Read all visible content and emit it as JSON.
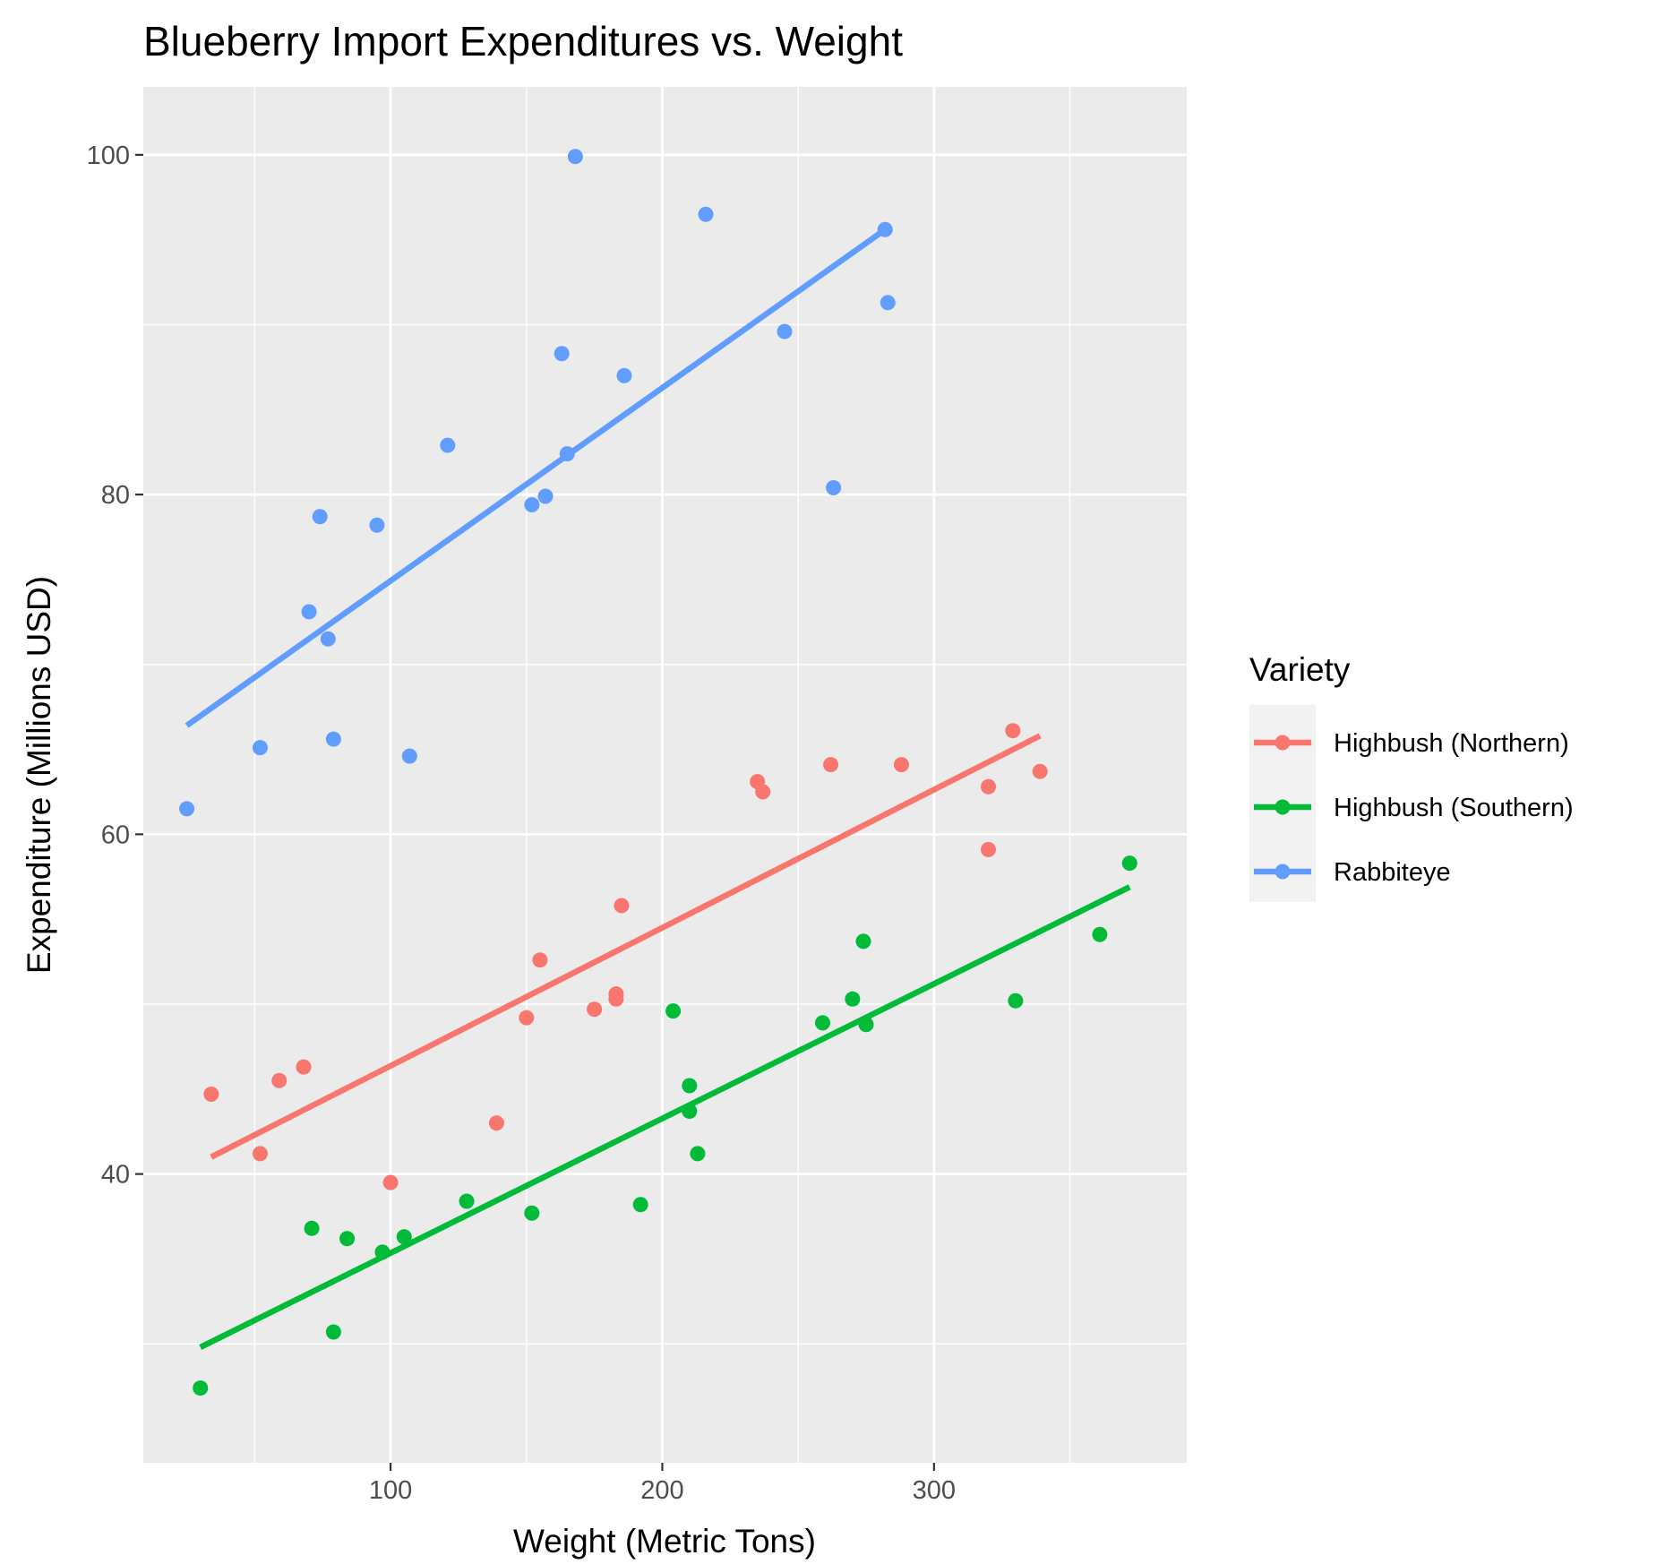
{
  "chart_data": {
    "type": "scatter",
    "title": "Blueberry Import Expenditures vs. Weight",
    "xlabel": "Weight (Metric Tons)",
    "ylabel": "Expenditure (Millions USD)",
    "xlim": [
      9,
      393
    ],
    "ylim": [
      23,
      104
    ],
    "x_ticks": [
      100,
      200,
      300
    ],
    "y_ticks": [
      40,
      60,
      80,
      100
    ],
    "x_tick_labels": [
      "100",
      "200",
      "300"
    ],
    "y_tick_labels": [
      "40",
      "60",
      "80",
      "100"
    ],
    "grid": true,
    "panel_background": "#EBEBEB",
    "legend": {
      "title": "Variety",
      "position": "right"
    },
    "series": [
      {
        "name": "Highbush (Northern)",
        "color": "#F8766D",
        "points": [
          [
            34,
            44.7
          ],
          [
            52,
            41.2
          ],
          [
            59,
            45.5
          ],
          [
            68,
            46.3
          ],
          [
            100,
            39.5
          ],
          [
            139,
            43.0
          ],
          [
            150,
            49.2
          ],
          [
            155,
            52.6
          ],
          [
            175,
            49.7
          ],
          [
            183,
            50.6
          ],
          [
            183,
            50.3
          ],
          [
            185,
            55.8
          ],
          [
            235,
            63.1
          ],
          [
            237,
            62.5
          ],
          [
            262,
            64.1
          ],
          [
            288,
            64.1
          ],
          [
            320,
            62.8
          ],
          [
            320,
            59.1
          ],
          [
            329,
            66.1
          ],
          [
            339,
            63.7
          ]
        ],
        "fit": {
          "x": [
            34,
            339
          ],
          "y": [
            41.0,
            65.8
          ]
        }
      },
      {
        "name": "Highbush (Southern)",
        "color": "#00BA38",
        "points": [
          [
            30,
            27.4
          ],
          [
            71,
            36.8
          ],
          [
            79,
            30.7
          ],
          [
            84,
            36.2
          ],
          [
            97,
            35.4
          ],
          [
            105,
            36.3
          ],
          [
            128,
            38.4
          ],
          [
            152,
            37.7
          ],
          [
            192,
            38.2
          ],
          [
            204,
            49.6
          ],
          [
            210,
            45.2
          ],
          [
            210,
            43.7
          ],
          [
            213,
            41.2
          ],
          [
            259,
            48.9
          ],
          [
            270,
            50.3
          ],
          [
            274,
            53.7
          ],
          [
            275,
            48.8
          ],
          [
            330,
            50.2
          ],
          [
            361,
            54.1
          ],
          [
            372,
            58.3
          ]
        ],
        "fit": {
          "x": [
            30,
            372
          ],
          "y": [
            29.8,
            56.9
          ]
        }
      },
      {
        "name": "Rabbiteye",
        "color": "#619CFF",
        "points": [
          [
            25,
            61.5
          ],
          [
            52,
            65.1
          ],
          [
            70,
            73.1
          ],
          [
            74,
            78.7
          ],
          [
            77,
            71.5
          ],
          [
            79,
            65.6
          ],
          [
            95,
            78.2
          ],
          [
            107,
            64.6
          ],
          [
            121,
            82.9
          ],
          [
            152,
            79.4
          ],
          [
            157,
            79.9
          ],
          [
            163,
            88.3
          ],
          [
            165,
            82.4
          ],
          [
            168,
            99.9
          ],
          [
            186,
            87.0
          ],
          [
            216,
            96.5
          ],
          [
            245,
            89.6
          ],
          [
            263,
            80.4
          ],
          [
            282,
            95.6
          ],
          [
            283,
            91.3
          ]
        ],
        "fit": {
          "x": [
            25,
            282
          ],
          "y": [
            66.4,
            95.6
          ]
        }
      }
    ]
  }
}
